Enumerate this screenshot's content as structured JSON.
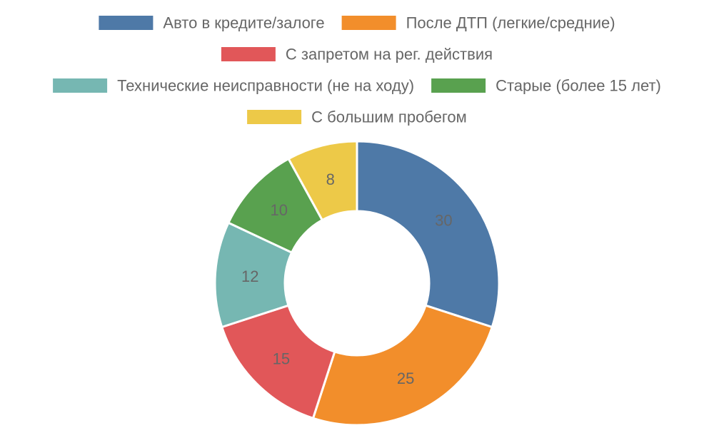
{
  "chart_data": {
    "type": "pie",
    "variant": "doughnut",
    "categories": [
      "Авто в кредите/залоге",
      "После ДТП (легкие/средние)",
      "С запретом на рег. действия",
      "Технические неисправности (не на ходу)",
      "Старые (более 15 лет)",
      "С большим пробегом"
    ],
    "values": [
      30,
      25,
      15,
      12,
      10,
      8
    ],
    "colors": [
      "#4e79a7",
      "#f28e2b",
      "#e15759",
      "#76b7b2",
      "#59a14f",
      "#edc948"
    ],
    "data_labels": [
      "30",
      "25",
      "15",
      "12",
      "10",
      "8"
    ],
    "legend_position": "top",
    "slice_border_color": "#ffffff"
  }
}
